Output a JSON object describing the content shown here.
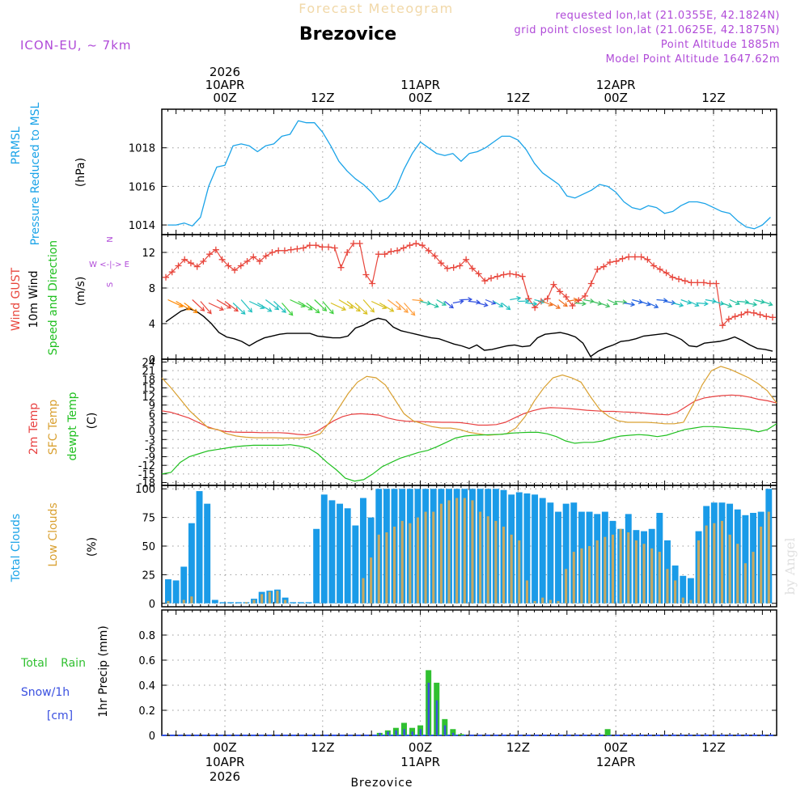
{
  "header": {
    "title": "Forecast Meteogram",
    "location": "Brezovice",
    "model": "ICON-EU, ~ 7km",
    "requested": "requested lon,lat (21.0355E, 42.1824N)",
    "grid_point": "grid point closest lon,lat (21.0625E, 42.1875N)",
    "point_alt": "Point Altitude 1885m",
    "model_alt": "Model Point Altitude 1647.62m"
  },
  "footer": {
    "location": "Brezovice",
    "credit": "by Angel"
  },
  "colors": {
    "pressure": "#1aa3e8",
    "gust": "#e8463c",
    "wind": "#000000",
    "temp2m": "#e84040",
    "sfc": "#d9a030",
    "dew": "#20c020",
    "total_clouds": "#1a9be8",
    "low_clouds": "#c8a860",
    "rain": "#30c030",
    "snow": "#3a50e0",
    "label_purple": "#b04ad8"
  },
  "time_axis": {
    "top": [
      {
        "t": 7,
        "lines": [
          "2026",
          "10APR",
          "00Z"
        ]
      },
      {
        "t": 19,
        "lines": [
          "12Z"
        ]
      },
      {
        "t": 31,
        "lines": [
          "11APR",
          "00Z"
        ]
      },
      {
        "t": 43,
        "lines": [
          "12Z"
        ]
      },
      {
        "t": 55,
        "lines": [
          "12APR",
          "00Z"
        ]
      },
      {
        "t": 67,
        "lines": [
          "12Z"
        ]
      }
    ],
    "bottom": [
      {
        "t": 7,
        "lines": [
          "00Z",
          "10APR",
          "2026"
        ]
      },
      {
        "t": 19,
        "lines": [
          "12Z"
        ]
      },
      {
        "t": 31,
        "lines": [
          "00Z",
          "11APR"
        ]
      },
      {
        "t": 43,
        "lines": [
          "12Z"
        ]
      },
      {
        "t": 55,
        "lines": [
          "00Z",
          "12APR"
        ]
      },
      {
        "t": 67,
        "lines": [
          "12Z"
        ]
      }
    ]
  },
  "chart_data": [
    {
      "type": "line",
      "title": "PRMSL Pressure Reduced to MSL",
      "label_lines": [
        "PRMSL",
        "Pressure Reduced to MSL"
      ],
      "ylabel": "(hPa)",
      "ylim": [
        1013.5,
        1020
      ],
      "yticks": [
        1014,
        1016,
        1018
      ],
      "x": "hours since 2026-04-09 17Z",
      "series": [
        {
          "name": "Pressure",
          "values": [
            1014.0,
            1014.0,
            1014.1,
            1013.95,
            1014.4,
            1016.0,
            1017.0,
            1017.1,
            1018.1,
            1018.2,
            1018.1,
            1017.8,
            1018.1,
            1018.2,
            1018.6,
            1018.7,
            1019.4,
            1019.3,
            1019.3,
            1018.8,
            1018.1,
            1017.3,
            1016.8,
            1016.4,
            1016.1,
            1015.7,
            1015.2,
            1015.4,
            1015.9,
            1016.9,
            1017.7,
            1018.3,
            1018.0,
            1017.7,
            1017.6,
            1017.7,
            1017.3,
            1017.7,
            1017.8,
            1018.0,
            1018.3,
            1018.6,
            1018.6,
            1018.4,
            1017.9,
            1017.2,
            1016.7,
            1016.4,
            1016.1,
            1015.5,
            1015.4,
            1015.6,
            1015.8,
            1016.1,
            1016.0,
            1015.7,
            1015.2,
            1014.9,
            1014.8,
            1015.0,
            1014.9,
            1014.6,
            1014.7,
            1015.0,
            1015.2,
            1015.2,
            1015.1,
            1014.9,
            1014.7,
            1014.6,
            1014.2,
            1013.9,
            1013.8,
            1014.0,
            1014.4
          ]
        }
      ]
    },
    {
      "type": "line",
      "title": "Wind GUST / 10m Wind Speed and Direction",
      "label_lines": [
        "Wind GUST",
        "10m Wind",
        "Speed and Direction"
      ],
      "ylabel": "(m/s)",
      "compass": [
        "N",
        "W <-|-> E",
        "S"
      ],
      "ylim": [
        0,
        14
      ],
      "yticks": [
        0,
        4,
        8,
        12
      ],
      "series": [
        {
          "name": "Wind GUST",
          "values": [
            9.2,
            9.8,
            10.5,
            11.2,
            10.8,
            10.4,
            11.0,
            11.8,
            12.3,
            11.2,
            10.5,
            10.0,
            10.5,
            11.0,
            11.5,
            11.0,
            11.6,
            12.0,
            12.2,
            12.2,
            12.3,
            12.4,
            12.5,
            12.8,
            12.8,
            12.6,
            12.6,
            12.5,
            10.3,
            12.0,
            13.0,
            13.0,
            9.5,
            8.5,
            11.8,
            11.8,
            12.1,
            12.2,
            12.5,
            12.8,
            13.0,
            12.8,
            12.2,
            11.6,
            10.8,
            10.2,
            10.3,
            10.5,
            11.2,
            10.2,
            9.6,
            8.8,
            9.1,
            9.3,
            9.5,
            9.6,
            9.5,
            9.3,
            6.8,
            5.8,
            6.5,
            6.8,
            8.4,
            7.6,
            7.0,
            6.0,
            6.6,
            7.1,
            8.5,
            10.1,
            10.4,
            10.9,
            11.0,
            11.3,
            11.5,
            11.5,
            11.5,
            11.2,
            10.5,
            10.1,
            9.7,
            9.2,
            9.0,
            8.8,
            8.6,
            8.6,
            8.6,
            8.5,
            8.5,
            3.8,
            4.5,
            4.8,
            5.0,
            5.3,
            5.2,
            5.0,
            4.8,
            4.7
          ]
        },
        {
          "name": "10m Wind",
          "values": [
            4.2,
            4.8,
            5.4,
            5.7,
            5.4,
            4.8,
            4.0,
            3.0,
            2.5,
            2.3,
            2.0,
            1.5,
            2.0,
            2.4,
            2.6,
            2.8,
            2.9,
            2.9,
            2.9,
            2.9,
            2.6,
            2.5,
            2.4,
            2.4,
            2.6,
            3.5,
            3.8,
            4.3,
            4.6,
            4.4,
            3.6,
            3.2,
            3.0,
            2.8,
            2.6,
            2.4,
            2.3,
            2.0,
            1.7,
            1.5,
            1.2,
            1.6,
            1.0,
            1.1,
            1.3,
            1.5,
            1.6,
            1.4,
            1.5,
            2.4,
            2.8,
            2.9,
            3.0,
            2.8,
            2.5,
            1.8,
            0.3,
            0.9,
            1.3,
            1.6,
            2.0,
            2.1,
            2.3,
            2.6,
            2.7,
            2.8,
            2.9,
            2.6,
            2.2,
            1.5,
            1.4,
            1.8,
            1.9,
            2.0,
            2.2,
            2.5,
            2.1,
            1.6,
            1.2,
            1.1,
            0.9
          ]
        }
      ]
    },
    {
      "type": "line",
      "title": "2m Temp / SFC Temp / dewpt Temp",
      "label_lines": [
        "2m Temp",
        "SFC Temp",
        "dewpt Temp"
      ],
      "ylabel": "(C)",
      "ylim": [
        -19,
        25
      ],
      "yticks": [
        -18,
        -15,
        -12,
        -9,
        -6,
        -3,
        0,
        3,
        6,
        9,
        12,
        15,
        18,
        21,
        24
      ],
      "series": [
        {
          "name": "2m Temp",
          "values": [
            7.0,
            6.5,
            5.5,
            4.5,
            3.0,
            1.5,
            0.5,
            -0.2,
            -0.4,
            -0.5,
            -0.5,
            -0.6,
            -0.6,
            -0.6,
            -0.8,
            -1.2,
            -1.4,
            -0.5,
            1.5,
            3.5,
            5.0,
            5.8,
            6.0,
            5.8,
            5.5,
            4.5,
            3.8,
            3.4,
            3.3,
            3.2,
            3.1,
            3.0,
            3.0,
            2.9,
            2.5,
            2.0,
            2.0,
            2.2,
            3.0,
            4.5,
            6.0,
            7.0,
            7.8,
            8.1,
            8.0,
            7.8,
            7.5,
            7.2,
            7.0,
            6.8,
            6.8,
            6.6,
            6.5,
            6.3,
            6.0,
            5.8,
            5.6,
            6.5,
            8.5,
            10.5,
            11.5,
            12.0,
            12.3,
            12.5,
            12.3,
            11.8,
            11.0,
            10.5,
            9.7
          ]
        },
        {
          "name": "SFC Temp",
          "values": [
            18.5,
            15.0,
            11.0,
            7.0,
            4.0,
            1.0,
            0.5,
            -1.0,
            -1.8,
            -2.2,
            -2.4,
            -2.4,
            -2.4,
            -2.5,
            -2.5,
            -2.5,
            -2.0,
            -1.0,
            3.0,
            8.0,
            13.0,
            17.0,
            19.0,
            18.5,
            16.0,
            11.0,
            6.0,
            3.5,
            2.5,
            1.5,
            1.0,
            1.0,
            0.5,
            -0.5,
            -1.0,
            -1.5,
            -1.3,
            -1.0,
            1.0,
            5.0,
            10.5,
            15.0,
            18.5,
            19.5,
            18.5,
            17.0,
            12.0,
            7.5,
            5.0,
            3.5,
            3.0,
            3.0,
            3.0,
            2.8,
            2.5,
            2.5,
            3.0,
            9.0,
            16.0,
            21.0,
            22.5,
            21.5,
            20.0,
            18.5,
            16.5,
            14.0,
            9.7
          ]
        },
        {
          "name": "dewpt Temp",
          "values": [
            -15.0,
            -14.5,
            -11.0,
            -9.0,
            -8.0,
            -7.0,
            -6.5,
            -6.0,
            -5.5,
            -5.2,
            -5.0,
            -5.0,
            -5.0,
            -5.0,
            -4.8,
            -5.3,
            -6.0,
            -8.0,
            -11.0,
            -13.5,
            -16.5,
            -17.5,
            -17.0,
            -15.0,
            -12.5,
            -11.0,
            -9.5,
            -8.5,
            -7.5,
            -6.8,
            -5.5,
            -4.0,
            -2.5,
            -1.8,
            -1.5,
            -1.4,
            -1.3,
            -1.2,
            -0.8,
            -0.6,
            -0.5,
            -0.5,
            -1.0,
            -2.0,
            -3.5,
            -4.3,
            -4.0,
            -4.0,
            -3.5,
            -2.5,
            -1.8,
            -1.5,
            -1.3,
            -1.5,
            -2.0,
            -1.5,
            -0.5,
            0.5,
            1.0,
            1.5,
            1.5,
            1.3,
            1.0,
            0.8,
            0.5,
            -0.3,
            0.5,
            2.5
          ]
        }
      ]
    },
    {
      "type": "bar",
      "title": "Total Clouds / Low Clouds",
      "label_lines": [
        "Total Clouds",
        "Low Clouds"
      ],
      "ylabel": "(%)",
      "ylim": [
        -3,
        103
      ],
      "yticks": [
        0,
        25,
        50,
        75,
        100
      ],
      "series": [
        {
          "name": "Total Clouds",
          "values": [
            21,
            20,
            32,
            70,
            98,
            87,
            3,
            1,
            1,
            1,
            1,
            4,
            10,
            11,
            12,
            5,
            1,
            1,
            1,
            65,
            95,
            90,
            87,
            83,
            68,
            92,
            75,
            100,
            100,
            100,
            100,
            100,
            100,
            100,
            100,
            100,
            100,
            100,
            100,
            100,
            100,
            100,
            100,
            99,
            95,
            97,
            96,
            95,
            92,
            88,
            80,
            87,
            88,
            80,
            80,
            78,
            80,
            72,
            65,
            78,
            64,
            63,
            65,
            79,
            55,
            33,
            24,
            22,
            63,
            85,
            88,
            88,
            87,
            82,
            77,
            79,
            80,
            100
          ]
        },
        {
          "name": "Low Clouds",
          "values": [
            2,
            0,
            3,
            6,
            0,
            0,
            0,
            0,
            0,
            0,
            1,
            3,
            8,
            10,
            11,
            3,
            0,
            0,
            0,
            0,
            0,
            0,
            0,
            0,
            0,
            22,
            40,
            60,
            62,
            67,
            72,
            70,
            75,
            80,
            80,
            87,
            90,
            92,
            92,
            90,
            80,
            76,
            72,
            67,
            60,
            55,
            20,
            2,
            5,
            3,
            2,
            30,
            45,
            48,
            50,
            55,
            58,
            60,
            65,
            62,
            55,
            52,
            48,
            45,
            30,
            20,
            5,
            3,
            55,
            68,
            70,
            72,
            60,
            52,
            35,
            45,
            67,
            80
          ]
        }
      ]
    },
    {
      "type": "bar",
      "title": "1hr Precip",
      "label_lines": [
        "Total Rain",
        "Snow/1h",
        "[cm]"
      ],
      "ylabel": "1hr Precip (mm)",
      "ylim": [
        0,
        1.0
      ],
      "yticks": [
        0,
        0.2,
        0.4,
        0.6,
        0.8
      ],
      "series": [
        {
          "name": "Total Rain",
          "t": [
            26,
            27,
            28,
            29,
            30,
            31,
            32,
            33,
            34,
            35,
            36,
            54
          ],
          "values": [
            0.02,
            0.04,
            0.06,
            0.1,
            0.06,
            0.08,
            0.52,
            0.42,
            0.13,
            0.05,
            0.01,
            0.05
          ]
        },
        {
          "name": "Snow/1h",
          "t": [
            26,
            27,
            28,
            29,
            30,
            31,
            32,
            33,
            34,
            35,
            36,
            54
          ],
          "values": [
            0.02,
            0.03,
            0.04,
            0.05,
            0.03,
            0.05,
            0.42,
            0.28,
            0.08,
            0.02,
            0.0,
            0.0
          ]
        }
      ]
    }
  ]
}
